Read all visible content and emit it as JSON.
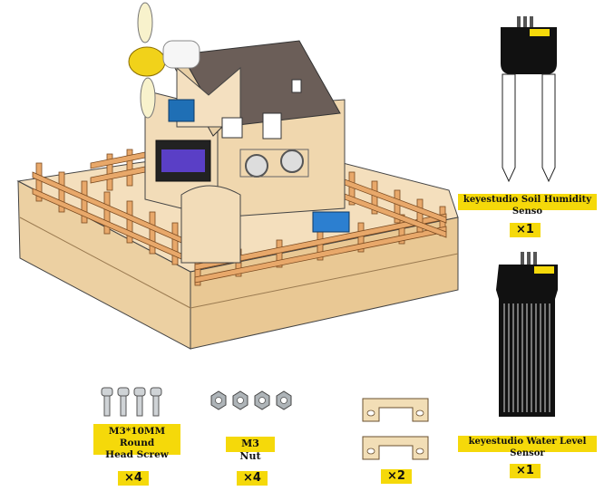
{
  "parts": {
    "soil_sensor": {
      "label": "keyestudio Soil Humidity Senso",
      "qty": "×1"
    },
    "water_sensor": {
      "label": "keyestudio Water Level Sensor",
      "qty": "×1"
    },
    "screw": {
      "label_line1": "M3*10MM Round",
      "label_line2": "Head Screw",
      "qty": "×4"
    },
    "nut": {
      "label": "M3 Nut",
      "qty": "×4"
    },
    "bracket": {
      "qty": "×2"
    }
  },
  "colors": {
    "label_bg": "#f5d90a",
    "wood": "#f1d4a8",
    "fence": "#e8a86a"
  }
}
